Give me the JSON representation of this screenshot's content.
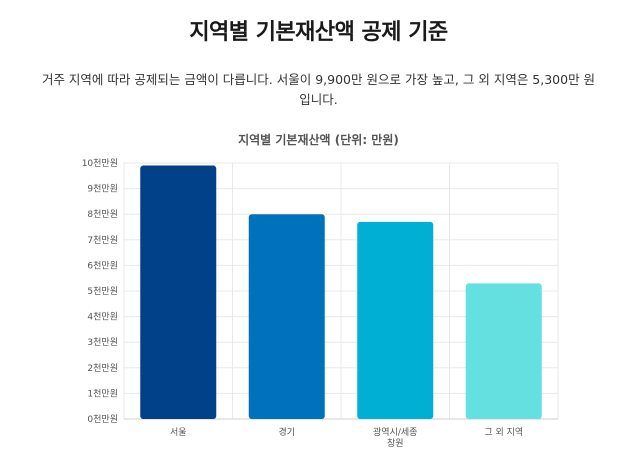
{
  "page": {
    "title": "지역별 기본재산액 공제 기준",
    "description": "거주 지역에 따라 공제되는 금액이 다릅니다. 서울이 9,900만 원으로 가장 높고, 그 외 지역은 5,300만 원입니다."
  },
  "chart_data": {
    "type": "bar",
    "title": "지역별 기본재산액 (단위: 만원)",
    "categories": [
      [
        "서울"
      ],
      [
        "경기"
      ],
      [
        "광역시/세종",
        "창원"
      ],
      [
        "그 외 지역"
      ]
    ],
    "values": [
      9900,
      8000,
      7700,
      5300
    ],
    "colors": [
      "#00418a",
      "#0072bd",
      "#00b0d4",
      "#64e0e0"
    ],
    "ylim": [
      0,
      10000
    ],
    "yticks": [
      {
        "value": 0,
        "label": "0천만원"
      },
      {
        "value": 1000,
        "label": "1천만원"
      },
      {
        "value": 2000,
        "label": "2천만원"
      },
      {
        "value": 3000,
        "label": "3천만원"
      },
      {
        "value": 4000,
        "label": "4천만원"
      },
      {
        "value": 5000,
        "label": "5천만원"
      },
      {
        "value": 6000,
        "label": "6천만원"
      },
      {
        "value": 7000,
        "label": "7천만원"
      },
      {
        "value": 8000,
        "label": "8천만원"
      },
      {
        "value": 9000,
        "label": "9천만원"
      },
      {
        "value": 10000,
        "label": "10천만원"
      }
    ],
    "grid": true,
    "legend": "none"
  }
}
